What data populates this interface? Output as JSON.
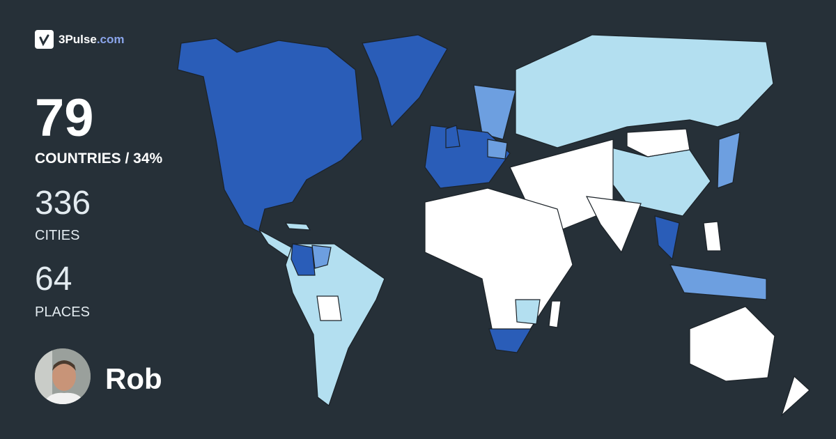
{
  "brand": {
    "name": "3Pulse",
    "tld": ".com",
    "icon": "checkmark-pulse-logo-icon"
  },
  "stats": {
    "countries_value": "79",
    "countries_label": "COUNTRIES / 34%",
    "cities_value": "336",
    "cities_label": "CITIES",
    "places_value": "64",
    "places_label": "PLACES"
  },
  "user": {
    "name": "Rob"
  },
  "colors": {
    "background": "#263038",
    "visited_most": "#2a5db8",
    "visited_medium": "#6d9fe0",
    "visited_light": "#b3dff0",
    "not_visited": "#ffffff",
    "border": "#1b2228"
  }
}
